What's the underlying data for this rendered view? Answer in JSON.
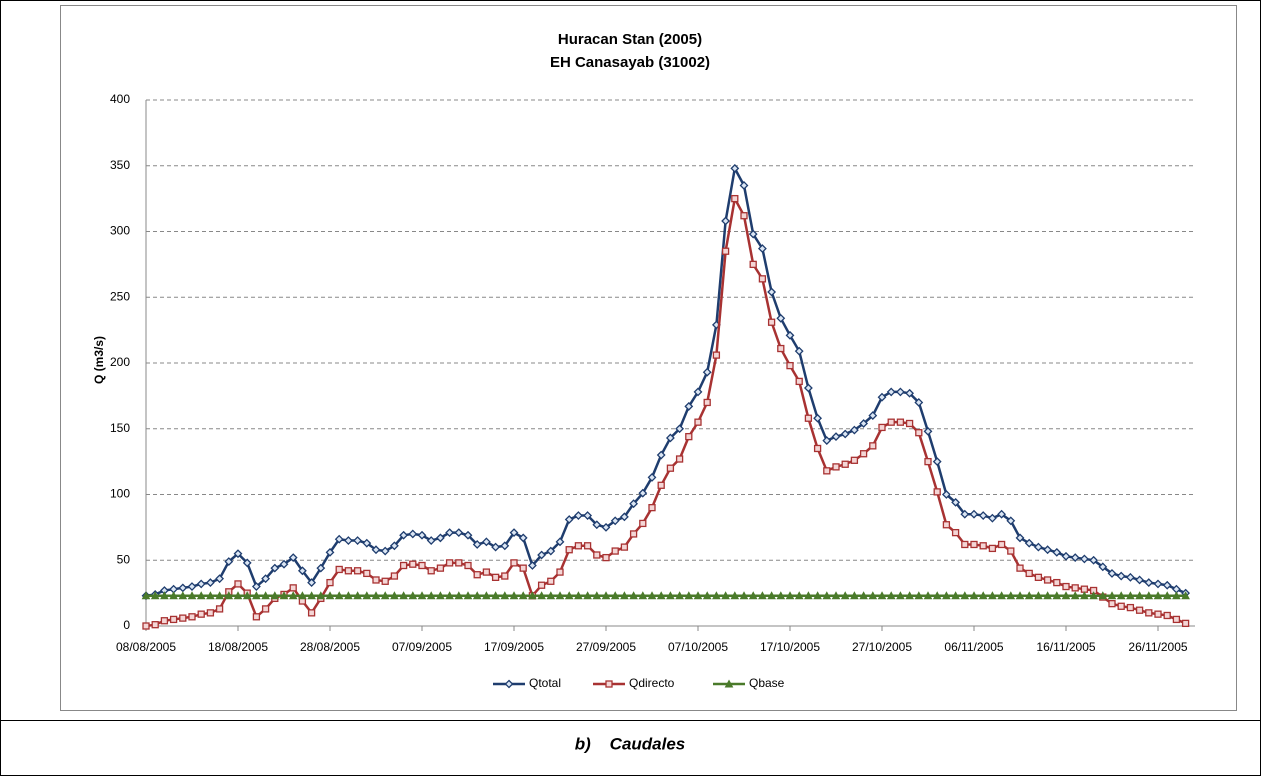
{
  "chart_data": {
    "type": "line",
    "title": "Huracan Stan (2005)",
    "subtitle": "EH Canasayab (31002)",
    "y_label": "Q (m3/s)",
    "caption": "b)    Caudales",
    "categories": [
      "08/08/2005",
      null,
      null,
      null,
      null,
      null,
      null,
      null,
      null,
      null,
      "18/08/2005",
      null,
      null,
      null,
      null,
      null,
      null,
      null,
      null,
      null,
      "28/08/2005",
      null,
      null,
      null,
      null,
      null,
      null,
      null,
      null,
      null,
      "07/09/2005",
      null,
      null,
      null,
      null,
      null,
      null,
      null,
      null,
      null,
      "17/09/2005",
      null,
      null,
      null,
      null,
      null,
      null,
      null,
      null,
      null,
      "27/09/2005",
      null,
      null,
      null,
      null,
      null,
      null,
      null,
      null,
      null,
      "07/10/2005",
      null,
      null,
      null,
      null,
      null,
      null,
      null,
      null,
      null,
      "17/10/2005",
      null,
      null,
      null,
      null,
      null,
      null,
      null,
      null,
      null,
      "27/10/2005",
      null,
      null,
      null,
      null,
      null,
      null,
      null,
      null,
      null,
      "06/11/2005",
      null,
      null,
      null,
      null,
      null,
      null,
      null,
      null,
      null,
      "16/11/2005",
      null,
      null,
      null,
      null,
      null,
      null,
      null,
      null,
      null,
      "26/11/2005",
      null,
      null,
      null
    ],
    "series": [
      {
        "name": "Qtotal",
        "color": "#1f3d6e",
        "marker": "diamond",
        "values": [
          23,
          24,
          27,
          28,
          29,
          30,
          32,
          33,
          36,
          49,
          55,
          48,
          30,
          36,
          44,
          47,
          52,
          42,
          33,
          44,
          56,
          66,
          65,
          65,
          63,
          58,
          57,
          61,
          69,
          70,
          69,
          65,
          67,
          71,
          71,
          69,
          62,
          64,
          60,
          61,
          71,
          67,
          46,
          54,
          57,
          64,
          81,
          84,
          84,
          77,
          75,
          80,
          83,
          93,
          101,
          113,
          130,
          143,
          150,
          167,
          178,
          193,
          229,
          308,
          348,
          335,
          298,
          287,
          254,
          234,
          221,
          209,
          181,
          158,
          141,
          144,
          146,
          149,
          154,
          160,
          174,
          178,
          178,
          177,
          170,
          148,
          125,
          100,
          94,
          85,
          85,
          84,
          82,
          85,
          80,
          67,
          63,
          60,
          58,
          56,
          53,
          52,
          51,
          50,
          45,
          40,
          38,
          37,
          35,
          33,
          32,
          31,
          28,
          25
        ]
      },
      {
        "name": "Qdirecto",
        "color": "#a83232",
        "marker": "square",
        "values": [
          0,
          1,
          4,
          5,
          6,
          7,
          9,
          10,
          13,
          26,
          32,
          25,
          7,
          13,
          21,
          24,
          29,
          19,
          10,
          21,
          33,
          43,
          42,
          42,
          40,
          35,
          34,
          38,
          46,
          47,
          46,
          42,
          44,
          48,
          48,
          46,
          39,
          41,
          37,
          38,
          48,
          44,
          23,
          31,
          34,
          41,
          58,
          61,
          61,
          54,
          52,
          57,
          60,
          70,
          78,
          90,
          107,
          120,
          127,
          144,
          155,
          170,
          206,
          285,
          325,
          312,
          275,
          264,
          231,
          211,
          198,
          186,
          158,
          135,
          118,
          121,
          123,
          126,
          131,
          137,
          151,
          155,
          155,
          154,
          147,
          125,
          102,
          77,
          71,
          62,
          62,
          61,
          59,
          62,
          57,
          44,
          40,
          37,
          35,
          33,
          30,
          29,
          28,
          27,
          22,
          17,
          15,
          14,
          12,
          10,
          9,
          8,
          5,
          2
        ]
      },
      {
        "name": "Qbase",
        "color": "#4a7a2a",
        "marker": "triangle",
        "values": [
          23,
          23,
          23,
          23,
          23,
          23,
          23,
          23,
          23,
          23,
          23,
          23,
          23,
          23,
          23,
          23,
          23,
          23,
          23,
          23,
          23,
          23,
          23,
          23,
          23,
          23,
          23,
          23,
          23,
          23,
          23,
          23,
          23,
          23,
          23,
          23,
          23,
          23,
          23,
          23,
          23,
          23,
          23,
          23,
          23,
          23,
          23,
          23,
          23,
          23,
          23,
          23,
          23,
          23,
          23,
          23,
          23,
          23,
          23,
          23,
          23,
          23,
          23,
          23,
          23,
          23,
          23,
          23,
          23,
          23,
          23,
          23,
          23,
          23,
          23,
          23,
          23,
          23,
          23,
          23,
          23,
          23,
          23,
          23,
          23,
          23,
          23,
          23,
          23,
          23,
          23,
          23,
          23,
          23,
          23,
          23,
          23,
          23,
          23,
          23,
          23,
          23,
          23,
          23,
          23,
          23,
          23,
          23,
          23,
          23,
          23,
          23,
          23,
          23
        ]
      }
    ],
    "ylim": [
      0,
      400
    ],
    "yticks": [
      0,
      50,
      100,
      150,
      200,
      250,
      300,
      350,
      400
    ],
    "grid": true,
    "legend": "bottom"
  }
}
